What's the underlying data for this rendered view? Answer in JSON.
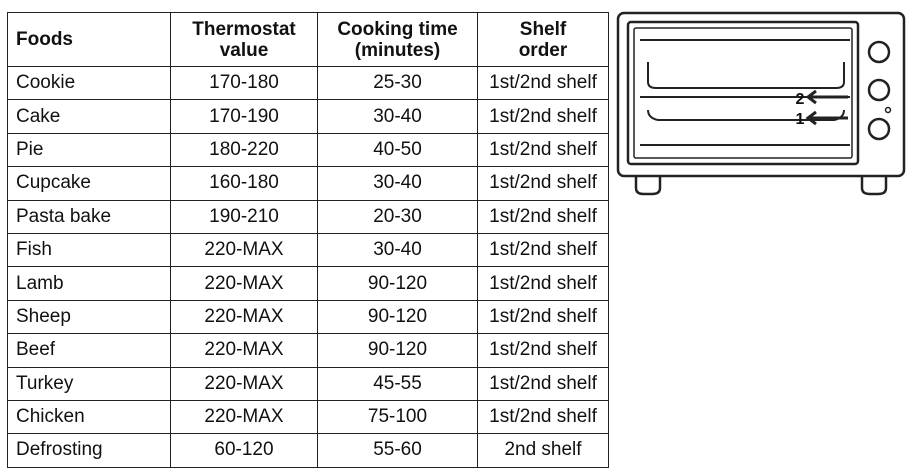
{
  "table": {
    "header": [
      "Foods",
      "Thermostat\nvalue",
      "Cooking time\n(minutes)",
      "Shelf\norder"
    ],
    "rows": [
      [
        "Cookie",
        "170-180",
        "25-30",
        "1st/2nd shelf"
      ],
      [
        "Cake",
        "170-190",
        "30-40",
        "1st/2nd shelf"
      ],
      [
        "Pie",
        "180-220",
        "40-50",
        "1st/2nd shelf"
      ],
      [
        "Cupcake",
        "160-180",
        "30-40",
        "1st/2nd shelf"
      ],
      [
        "Pasta bake",
        "190-210",
        "20-30",
        "1st/2nd shelf"
      ],
      [
        "Fish",
        "220-MAX",
        "30-40",
        "1st/2nd shelf"
      ],
      [
        "Lamb",
        "220-MAX",
        "90-120",
        "1st/2nd shelf"
      ],
      [
        "Sheep",
        "220-MAX",
        "90-120",
        "1st/2nd shelf"
      ],
      [
        "Beef",
        "220-MAX",
        "90-120",
        "1st/2nd shelf"
      ],
      [
        "Turkey",
        "220-MAX",
        "45-55",
        "1st/2nd shelf"
      ],
      [
        "Chicken",
        "220-MAX",
        "75-100",
        "1st/2nd shelf"
      ],
      [
        "Defrosting",
        "60-120",
        "55-60",
        "2nd shelf"
      ]
    ]
  },
  "diagram": {
    "shelf_labels": [
      "2",
      "1"
    ]
  }
}
